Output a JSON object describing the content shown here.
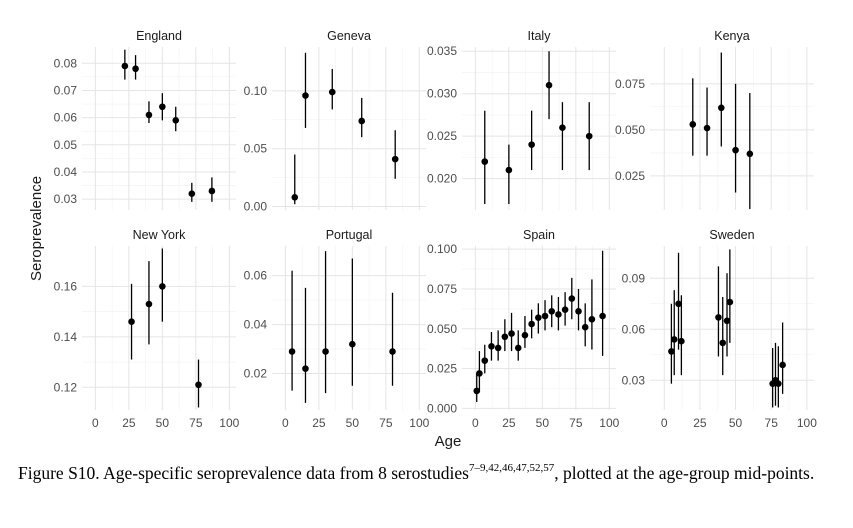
{
  "chart_data": {
    "type": "scatter",
    "layout": "facet-grid 2x4",
    "xlabel": "Age",
    "ylabel": "Seroprevalence",
    "x_ticks": [
      0,
      25,
      50,
      75,
      100
    ],
    "xlim": [
      -10,
      105
    ],
    "grid": true,
    "legend": "none",
    "panels": [
      {
        "title": "England",
        "ylim": [
          0.026,
          0.086
        ],
        "y_ticks": [
          0.03,
          0.04,
          0.05,
          0.06,
          0.07,
          0.08
        ],
        "y_tick_labels": [
          "0.03",
          "0.04",
          "0.05",
          "0.06",
          "0.07",
          "0.08"
        ],
        "points": [
          {
            "x": 22,
            "y": 0.079,
            "lo": 0.074,
            "hi": 0.085
          },
          {
            "x": 30,
            "y": 0.078,
            "lo": 0.074,
            "hi": 0.083
          },
          {
            "x": 40,
            "y": 0.061,
            "lo": 0.058,
            "hi": 0.066
          },
          {
            "x": 50,
            "y": 0.064,
            "lo": 0.059,
            "hi": 0.069
          },
          {
            "x": 60,
            "y": 0.059,
            "lo": 0.055,
            "hi": 0.064
          },
          {
            "x": 72,
            "y": 0.032,
            "lo": 0.029,
            "hi": 0.036
          },
          {
            "x": 87,
            "y": 0.033,
            "lo": 0.029,
            "hi": 0.038
          }
        ]
      },
      {
        "title": "Geneva",
        "ylim": [
          -0.003,
          0.138
        ],
        "y_ticks": [
          0,
          0.05,
          0.1
        ],
        "y_tick_labels": [
          "0.00",
          "0.05",
          "0.10"
        ],
        "points": [
          {
            "x": 7,
            "y": 0.008,
            "lo": 0.002,
            "hi": 0.045
          },
          {
            "x": 15,
            "y": 0.096,
            "lo": 0.068,
            "hi": 0.133
          },
          {
            "x": 35,
            "y": 0.099,
            "lo": 0.084,
            "hi": 0.119
          },
          {
            "x": 57,
            "y": 0.074,
            "lo": 0.06,
            "hi": 0.094
          },
          {
            "x": 82,
            "y": 0.041,
            "lo": 0.024,
            "hi": 0.066
          }
        ]
      },
      {
        "title": "Italy",
        "ylim": [
          0.0163,
          0.0355
        ],
        "y_ticks": [
          0.02,
          0.025,
          0.03,
          0.035
        ],
        "y_tick_labels": [
          "0.020",
          "0.025",
          "0.030",
          "0.035"
        ],
        "points": [
          {
            "x": 7,
            "y": 0.022,
            "lo": 0.017,
            "hi": 0.028
          },
          {
            "x": 25,
            "y": 0.021,
            "lo": 0.017,
            "hi": 0.024
          },
          {
            "x": 42,
            "y": 0.024,
            "lo": 0.021,
            "hi": 0.028
          },
          {
            "x": 55,
            "y": 0.031,
            "lo": 0.027,
            "hi": 0.035
          },
          {
            "x": 65,
            "y": 0.026,
            "lo": 0.021,
            "hi": 0.029
          },
          {
            "x": 85,
            "y": 0.025,
            "lo": 0.021,
            "hi": 0.029
          }
        ]
      },
      {
        "title": "Kenya",
        "ylim": [
          0.0065,
          0.095
        ],
        "y_ticks": [
          0.025,
          0.05,
          0.075
        ],
        "y_tick_labels": [
          "0.025",
          "0.050",
          "0.075"
        ],
        "points": [
          {
            "x": 20,
            "y": 0.053,
            "lo": 0.036,
            "hi": 0.078
          },
          {
            "x": 30,
            "y": 0.051,
            "lo": 0.036,
            "hi": 0.073
          },
          {
            "x": 40,
            "y": 0.062,
            "lo": 0.041,
            "hi": 0.092
          },
          {
            "x": 50,
            "y": 0.039,
            "lo": 0.016,
            "hi": 0.075
          },
          {
            "x": 60,
            "y": 0.037,
            "lo": 0.007,
            "hi": 0.07
          }
        ]
      },
      {
        "title": "New York",
        "ylim": [
          0.111,
          0.176
        ],
        "y_ticks": [
          0.12,
          0.14,
          0.16
        ],
        "y_tick_labels": [
          "0.12",
          "0.14",
          "0.16"
        ],
        "points": [
          {
            "x": 27,
            "y": 0.146,
            "lo": 0.131,
            "hi": 0.161
          },
          {
            "x": 40,
            "y": 0.153,
            "lo": 0.137,
            "hi": 0.17
          },
          {
            "x": 50,
            "y": 0.16,
            "lo": 0.146,
            "hi": 0.175
          },
          {
            "x": 77,
            "y": 0.121,
            "lo": 0.112,
            "hi": 0.131
          }
        ]
      },
      {
        "title": "Portugal",
        "ylim": [
          0.0051,
          0.0721
        ],
        "y_ticks": [
          0.02,
          0.04,
          0.06
        ],
        "y_tick_labels": [
          "0.02",
          "0.04",
          "0.06"
        ],
        "points": [
          {
            "x": 5,
            "y": 0.029,
            "lo": 0.013,
            "hi": 0.062
          },
          {
            "x": 15,
            "y": 0.022,
            "lo": 0.008,
            "hi": 0.055
          },
          {
            "x": 30,
            "y": 0.029,
            "lo": 0.012,
            "hi": 0.07
          },
          {
            "x": 50,
            "y": 0.032,
            "lo": 0.015,
            "hi": 0.067
          },
          {
            "x": 80,
            "y": 0.029,
            "lo": 0.015,
            "hi": 0.053
          }
        ]
      },
      {
        "title": "Spain",
        "ylim": [
          -0.001,
          0.102
        ],
        "y_ticks": [
          0,
          0.025,
          0.05,
          0.075,
          0.1
        ],
        "y_tick_labels": [
          "0.000",
          "0.025",
          "0.050",
          "0.075",
          "0.100"
        ],
        "points": [
          {
            "x": 1,
            "y": 0.011,
            "lo": 0.004,
            "hi": 0.022
          },
          {
            "x": 3,
            "y": 0.022,
            "lo": 0.01,
            "hi": 0.036
          },
          {
            "x": 7,
            "y": 0.03,
            "lo": 0.022,
            "hi": 0.04
          },
          {
            "x": 12,
            "y": 0.039,
            "lo": 0.03,
            "hi": 0.048
          },
          {
            "x": 17,
            "y": 0.038,
            "lo": 0.03,
            "hi": 0.049
          },
          {
            "x": 22,
            "y": 0.045,
            "lo": 0.036,
            "hi": 0.056
          },
          {
            "x": 27,
            "y": 0.047,
            "lo": 0.036,
            "hi": 0.06
          },
          {
            "x": 32,
            "y": 0.038,
            "lo": 0.03,
            "hi": 0.049
          },
          {
            "x": 37,
            "y": 0.046,
            "lo": 0.038,
            "hi": 0.058
          },
          {
            "x": 42,
            "y": 0.053,
            "lo": 0.044,
            "hi": 0.062
          },
          {
            "x": 47,
            "y": 0.057,
            "lo": 0.047,
            "hi": 0.066
          },
          {
            "x": 52,
            "y": 0.058,
            "lo": 0.049,
            "hi": 0.068
          },
          {
            "x": 57,
            "y": 0.061,
            "lo": 0.051,
            "hi": 0.071
          },
          {
            "x": 62,
            "y": 0.059,
            "lo": 0.049,
            "hi": 0.07
          },
          {
            "x": 67,
            "y": 0.062,
            "lo": 0.052,
            "hi": 0.073
          },
          {
            "x": 72,
            "y": 0.069,
            "lo": 0.056,
            "hi": 0.082
          },
          {
            "x": 77,
            "y": 0.061,
            "lo": 0.049,
            "hi": 0.075
          },
          {
            "x": 82,
            "y": 0.051,
            "lo": 0.039,
            "hi": 0.066
          },
          {
            "x": 87,
            "y": 0.056,
            "lo": 0.037,
            "hi": 0.081
          },
          {
            "x": 95,
            "y": 0.058,
            "lo": 0.033,
            "hi": 0.099
          }
        ]
      },
      {
        "title": "Sweden",
        "ylim": [
          0.0125,
          0.109
        ],
        "y_ticks": [
          0.03,
          0.06,
          0.09
        ],
        "y_tick_labels": [
          "0.03",
          "0.06",
          "0.09"
        ],
        "points": [
          {
            "x": 5,
            "y": 0.047,
            "lo": 0.028,
            "hi": 0.075
          },
          {
            "x": 7,
            "y": 0.054,
            "lo": 0.033,
            "hi": 0.083
          },
          {
            "x": 10,
            "y": 0.075,
            "lo": 0.048,
            "hi": 0.105
          },
          {
            "x": 12,
            "y": 0.053,
            "lo": 0.033,
            "hi": 0.08
          },
          {
            "x": 38,
            "y": 0.067,
            "lo": 0.044,
            "hi": 0.097
          },
          {
            "x": 41,
            "y": 0.052,
            "lo": 0.033,
            "hi": 0.079
          },
          {
            "x": 44,
            "y": 0.065,
            "lo": 0.044,
            "hi": 0.093
          },
          {
            "x": 46,
            "y": 0.076,
            "lo": 0.052,
            "hi": 0.107
          },
          {
            "x": 76,
            "y": 0.028,
            "lo": 0.014,
            "hi": 0.049
          },
          {
            "x": 78,
            "y": 0.03,
            "lo": 0.015,
            "hi": 0.052
          },
          {
            "x": 80,
            "y": 0.028,
            "lo": 0.014,
            "hi": 0.05
          },
          {
            "x": 83,
            "y": 0.039,
            "lo": 0.022,
            "hi": 0.064
          }
        ]
      }
    ]
  },
  "caption": {
    "prefix": "Figure S10. Age-specific seroprevalence data from 8 serostudies",
    "refs": "7–9,42,46,47,52,57",
    "suffix": ", plotted at the age-group mid-points."
  }
}
